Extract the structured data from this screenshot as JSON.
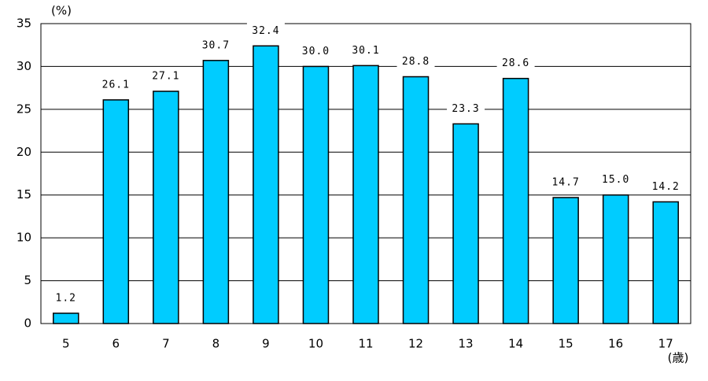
{
  "chart_data": {
    "type": "bar",
    "y_label": "(%)",
    "x_label": "(歳)",
    "categories": [
      "5",
      "6",
      "7",
      "8",
      "9",
      "10",
      "11",
      "12",
      "13",
      "14",
      "15",
      "16",
      "17"
    ],
    "values": [
      1.2,
      26.1,
      27.1,
      30.7,
      32.4,
      30.0,
      30.1,
      28.8,
      23.3,
      28.6,
      14.7,
      15.0,
      14.2
    ],
    "value_labels": [
      "1.2",
      "26.1",
      "27.1",
      "30.7",
      "32.4",
      "30.0",
      "30.1",
      "28.8",
      "23.3",
      "28.6",
      "14.7",
      "15.0",
      "14.2"
    ],
    "color": "#00ccff",
    "ylim": [
      0,
      35
    ],
    "yticks": [
      0,
      5,
      10,
      15,
      20,
      25,
      30,
      35
    ],
    "grid": true
  }
}
